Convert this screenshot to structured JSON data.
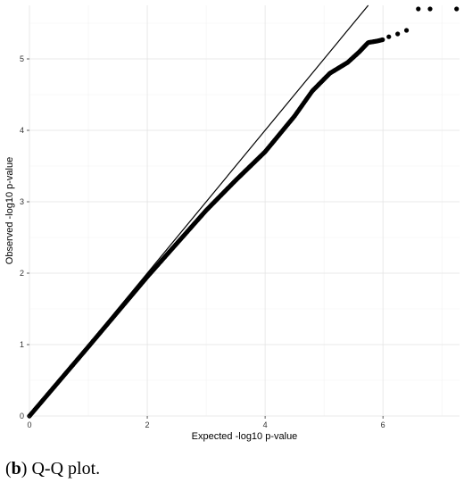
{
  "chart_data": {
    "type": "scatter",
    "title": "",
    "xlabel": "Expected -log10 p-value",
    "ylabel": "Observed -log10 p-value",
    "xlim": [
      0,
      7.3
    ],
    "ylim": [
      0,
      5.75
    ],
    "xticks": [
      0,
      2,
      4,
      6
    ],
    "yticks": [
      0,
      1,
      2,
      3,
      4,
      5
    ],
    "xtick_labels": [
      "0",
      "2",
      "4",
      "6"
    ],
    "ytick_labels": [
      "0",
      "1",
      "2",
      "3",
      "4",
      "5"
    ],
    "grid": true,
    "reference_line": {
      "type": "identity",
      "color": "#000000"
    },
    "point_color": "#000000",
    "curve": [
      [
        0,
        0
      ],
      [
        1,
        0.97
      ],
      [
        2,
        1.95
      ],
      [
        3,
        2.88
      ],
      [
        3.5,
        3.3
      ],
      [
        4,
        3.7
      ],
      [
        4.3,
        4.0
      ],
      [
        4.5,
        4.2
      ],
      [
        4.8,
        4.55
      ],
      [
        5.1,
        4.8
      ],
      [
        5.4,
        4.95
      ],
      [
        5.6,
        5.1
      ],
      [
        5.75,
        5.23
      ],
      [
        5.9,
        5.25
      ],
      [
        6.0,
        5.27
      ]
    ],
    "outliers": [
      [
        6.1,
        5.31
      ],
      [
        6.25,
        5.35
      ],
      [
        6.4,
        5.4
      ],
      [
        6.6,
        5.7
      ],
      [
        6.8,
        5.7
      ],
      [
        7.25,
        5.7
      ]
    ]
  },
  "caption": {
    "label": "b",
    "text": " Q-Q plot."
  }
}
